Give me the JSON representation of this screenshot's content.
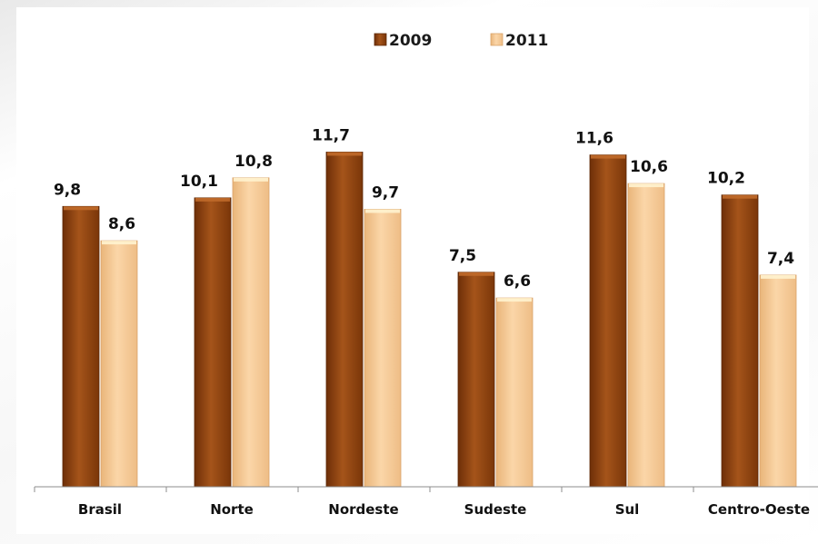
{
  "chart_data": {
    "type": "bar",
    "title": "",
    "xlabel": "",
    "ylabel": "",
    "ylim": [
      0,
      13
    ],
    "grid": false,
    "legend_position": "top",
    "categories": [
      "Brasil",
      "Norte",
      "Nordeste",
      "Sudeste",
      "Sul",
      "Centro-Oeste"
    ],
    "series": [
      {
        "name": "2009",
        "values": [
          9.8,
          10.1,
          11.7,
          7.5,
          11.6,
          10.2
        ],
        "labels": [
          "9,8",
          "10,1",
          "11,7",
          "7,5",
          "11,6",
          "10,2"
        ],
        "color": "#9a4a12"
      },
      {
        "name": "2011",
        "values": [
          8.6,
          10.8,
          9.7,
          6.6,
          10.6,
          7.4
        ],
        "labels": [
          "8,6",
          "10,8",
          "9,7",
          "6,6",
          "10,6",
          "7,4"
        ],
        "color": "#f7cf9e"
      }
    ]
  }
}
